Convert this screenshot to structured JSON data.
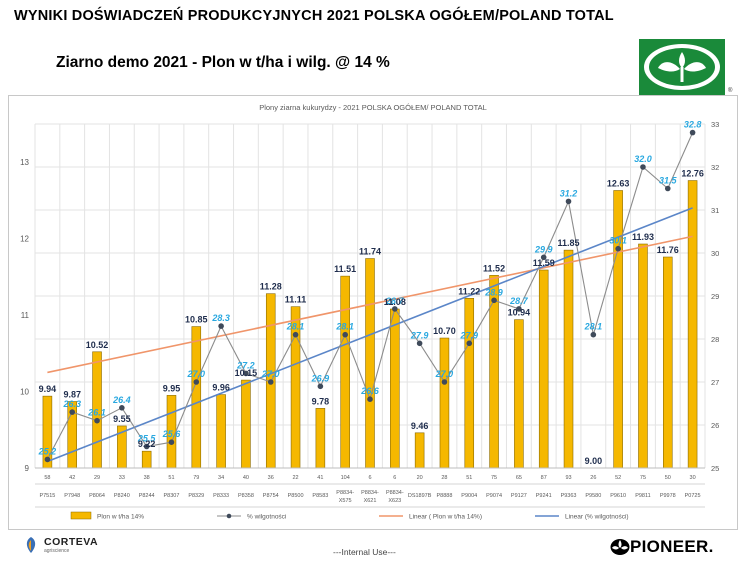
{
  "header": {
    "title": "WYNIKI DOŚWIADCZEŃ PRODUKCYJNYCH 2021 POLSKA OGÓŁEM/POLAND TOTAL",
    "subtitle": "Ziarno demo 2021 - Plon w t/ha i wilg. @ 14 %"
  },
  "brand": {
    "logo_icon": "pioneer-plant-logo-icon",
    "logo_color": "#1a8a3a",
    "registered": "®"
  },
  "footer": {
    "corteva": "CORTEVA",
    "corteva_sub": "agriscience",
    "internal": "---Internal Use---",
    "pioneer": "PIONEER."
  },
  "chart_data": {
    "type": "bar",
    "title": "Plony ziarna kukurydzy - 2021 POLSKA OGÓŁEM/ POLAND TOTAL",
    "categories": [
      {
        "count": "58",
        "name": "P7515"
      },
      {
        "count": "42",
        "name": "P7948"
      },
      {
        "count": "29",
        "name": "P8064"
      },
      {
        "count": "33",
        "name": "P8240"
      },
      {
        "count": "38",
        "name": "P8244"
      },
      {
        "count": "51",
        "name": "P8307"
      },
      {
        "count": "79",
        "name": "P8329"
      },
      {
        "count": "34",
        "name": "P8333"
      },
      {
        "count": "40",
        "name": "P8358"
      },
      {
        "count": "36",
        "name": "P8754"
      },
      {
        "count": "22",
        "name": "P8500"
      },
      {
        "count": "41",
        "name": "P8583"
      },
      {
        "count": "104",
        "name": "P8834-",
        "name2": "X575"
      },
      {
        "count": "6",
        "name": "P8834-",
        "name2": "X621"
      },
      {
        "count": "6",
        "name": "P8834-",
        "name2": "X623"
      },
      {
        "count": "20",
        "name": "DS1897B"
      },
      {
        "count": "28",
        "name": "P8888"
      },
      {
        "count": "51",
        "name": "P9004"
      },
      {
        "count": "75",
        "name": "P9074"
      },
      {
        "count": "65",
        "name": "P9127"
      },
      {
        "count": "87",
        "name": "P9241"
      },
      {
        "count": "93",
        "name": "P9363"
      },
      {
        "count": "26",
        "name": "P9580"
      },
      {
        "count": "52",
        "name": "P9610"
      },
      {
        "count": "75",
        "name": "P9811"
      },
      {
        "count": "50",
        "name": "P9978"
      },
      {
        "count": "30",
        "name": "P0725"
      }
    ],
    "series": [
      {
        "name": "Plon w t/ha 14%",
        "type": "bar",
        "axis": "left",
        "color": "#f5b800",
        "values": [
          9.94,
          9.87,
          10.52,
          9.55,
          9.22,
          9.95,
          10.85,
          9.96,
          10.15,
          11.28,
          11.11,
          9.78,
          11.51,
          11.74,
          11.08,
          9.46,
          10.7,
          11.22,
          11.52,
          10.94,
          11.59,
          11.85,
          9.0,
          12.63,
          11.93,
          11.76,
          12.76
        ]
      },
      {
        "name": "% wilgotności",
        "type": "line",
        "axis": "right",
        "color": "#6b7280",
        "values": [
          25.2,
          26.3,
          26.1,
          26.4,
          25.5,
          25.6,
          27.0,
          28.3,
          27.2,
          27.0,
          28.1,
          26.9,
          28.1,
          26.6,
          28.7,
          27.9,
          27.0,
          27.9,
          28.9,
          28.7,
          29.9,
          31.2,
          28.1,
          30.1,
          32.0,
          31.5,
          32.8
        ],
        "label_color": "#29a8e0"
      },
      {
        "name": "Linear ( Plon w t/ha 14%)",
        "type": "trend",
        "axis": "left",
        "color": "#f0956a",
        "from": 10.25,
        "to": 12.03
      },
      {
        "name": "Linear (% wilgotności)",
        "type": "trend",
        "axis": "right",
        "color": "#5b86c8",
        "from": 25.15,
        "to": 31.05
      }
    ],
    "y_left": {
      "min": 9,
      "max": 13.5,
      "ticks": [
        9,
        10,
        11,
        12,
        13
      ]
    },
    "y_right": {
      "min": 25,
      "max": 33,
      "ticks": [
        25,
        26,
        27,
        28,
        29,
        30,
        31,
        32,
        33
      ]
    },
    "grid": true,
    "legend": "bottom"
  }
}
